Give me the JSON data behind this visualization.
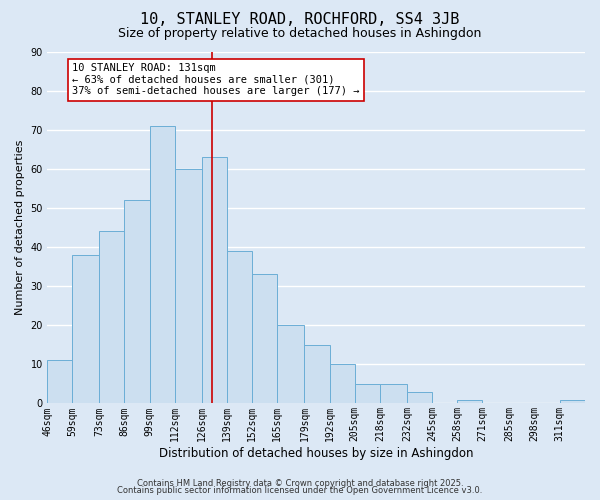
{
  "title": "10, STANLEY ROAD, ROCHFORD, SS4 3JB",
  "subtitle": "Size of property relative to detached houses in Ashingdon",
  "xlabel": "Distribution of detached houses by size in Ashingdon",
  "ylabel": "Number of detached properties",
  "bar_edges": [
    46,
    59,
    73,
    86,
    99,
    112,
    126,
    139,
    152,
    165,
    179,
    192,
    205,
    218,
    232,
    245,
    258,
    271,
    285,
    298,
    311,
    324
  ],
  "bar_heights": [
    11,
    38,
    44,
    52,
    71,
    60,
    63,
    39,
    33,
    20,
    15,
    10,
    5,
    5,
    3,
    0,
    1,
    0,
    0,
    0,
    1
  ],
  "bar_color": "#ccdff0",
  "bar_edgecolor": "#6baed6",
  "background_color": "#dce8f5",
  "grid_color": "#ffffff",
  "red_line_x": 131,
  "ylim": [
    0,
    90
  ],
  "yticks": [
    0,
    10,
    20,
    30,
    40,
    50,
    60,
    70,
    80,
    90
  ],
  "xtick_labels": [
    "46sqm",
    "59sqm",
    "73sqm",
    "86sqm",
    "99sqm",
    "112sqm",
    "126sqm",
    "139sqm",
    "152sqm",
    "165sqm",
    "179sqm",
    "192sqm",
    "205sqm",
    "218sqm",
    "232sqm",
    "245sqm",
    "258sqm",
    "271sqm",
    "285sqm",
    "298sqm",
    "311sqm"
  ],
  "annotation_line1": "10 STANLEY ROAD: 131sqm",
  "annotation_line2": "← 63% of detached houses are smaller (301)",
  "annotation_line3": "37% of semi-detached houses are larger (177) →",
  "annotation_box_color": "#ffffff",
  "annotation_box_edgecolor": "#cc0000",
  "footer_line1": "Contains HM Land Registry data © Crown copyright and database right 2025.",
  "footer_line2": "Contains public sector information licensed under the Open Government Licence v3.0.",
  "title_fontsize": 11,
  "subtitle_fontsize": 9,
  "xlabel_fontsize": 8.5,
  "ylabel_fontsize": 8,
  "tick_fontsize": 7,
  "annotation_fontsize": 7.5,
  "footer_fontsize": 6
}
